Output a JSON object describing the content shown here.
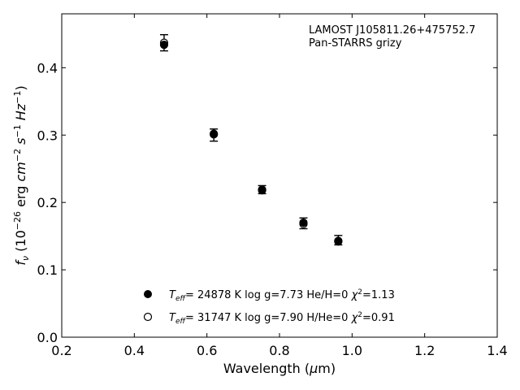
{
  "chart_data": {
    "type": "scatter",
    "annotation_lines": [
      "LAMOST J105811.26+475752.7",
      "Pan-STARRS grizy"
    ],
    "xlabel": {
      "base": "Wavelength (",
      "mu": "μ",
      "unit": "m)"
    },
    "ylabel": {
      "f": "f",
      "sub": "ν",
      "open": " (10",
      "exp1": "−26",
      "erg": " erg ",
      "cm": "cm",
      "exp2": "−2",
      "s": " s",
      "exp3": "−1",
      "hz": " Hz",
      "exp4": "−1",
      "close": ")"
    },
    "xlim": [
      0.2,
      1.4
    ],
    "ylim": [
      0.0,
      0.48
    ],
    "xticks": [
      0.2,
      0.4,
      0.6,
      0.8,
      1.0,
      1.2,
      1.4
    ],
    "yticks": [
      0.0,
      0.1,
      0.2,
      0.3,
      0.4
    ],
    "xtick_labels": [
      "0.2",
      "0.4",
      "0.6",
      "0.8",
      "1.0",
      "1.2",
      "1.4"
    ],
    "ytick_labels": [
      "0.0",
      "0.1",
      "0.2",
      "0.3",
      "0.4"
    ],
    "grid": false,
    "observed": {
      "x": [
        0.482,
        0.619,
        0.752,
        0.866,
        0.962
      ],
      "y": [
        0.437,
        0.3,
        0.219,
        0.169,
        0.144
      ],
      "err": [
        0.012,
        0.009,
        0.006,
        0.008,
        0.007
      ],
      "color": "#000000"
    },
    "models": [
      {
        "marker": "filled",
        "x": [
          0.482,
          0.619,
          0.752,
          0.866,
          0.962
        ],
        "y": [
          0.434,
          0.301,
          0.218,
          0.17,
          0.142
        ],
        "legend": {
          "teff": "T",
          "teff_sub": "eff",
          "text": "= 24878 K  log g=7.73  He/H=0  ",
          "chi": "χ",
          "chi_sup": "2",
          "chi_val": "=1.13"
        }
      },
      {
        "marker": "open",
        "x": [
          0.482,
          0.619,
          0.752,
          0.866,
          0.962
        ],
        "y": [
          0.437,
          0.302,
          0.219,
          0.168,
          0.143
        ],
        "legend": {
          "teff": "T",
          "teff_sub": "eff",
          "text": "= 31747 K  log g=7.90  H/He=0  ",
          "chi": "χ",
          "chi_sup": "2",
          "chi_val": "=0.91"
        }
      }
    ],
    "legend_position": "lower-center"
  }
}
